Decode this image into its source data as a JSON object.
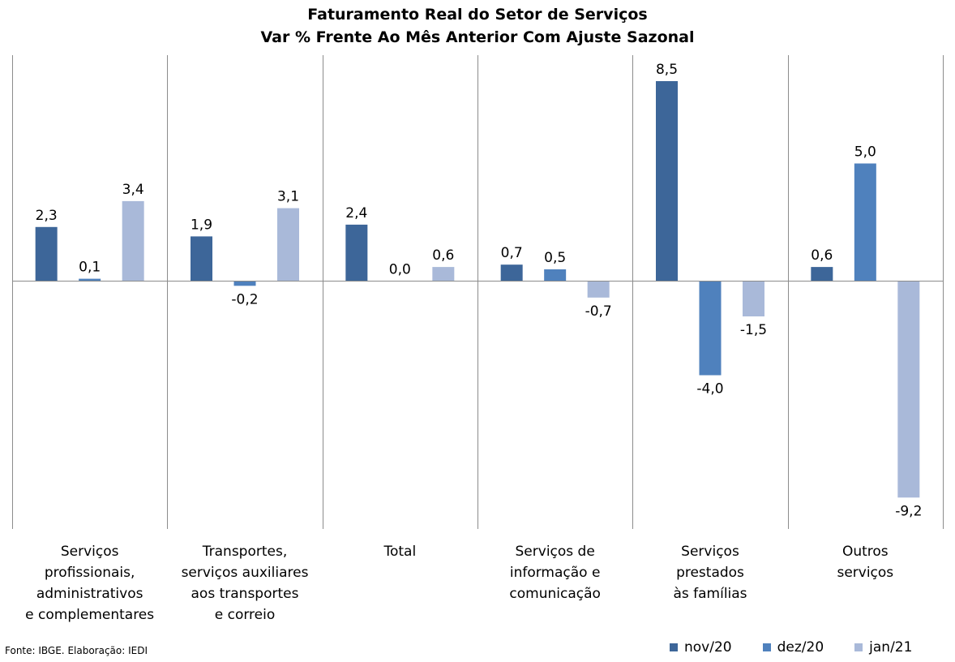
{
  "title_line1": "Faturamento Real do Setor de Serviços",
  "title_line2": "Var % Frente Ao Mês Anterior Com Ajuste Sazonal",
  "source": "Fonte: IBGE. Elaboração: IEDI",
  "colors": {
    "nov/20": "#3d6699",
    "dez/20": "#4f81bd",
    "jan/21": "#a9b9d9"
  },
  "chart_data": {
    "type": "bar",
    "title": "Faturamento Real do Setor de Serviços — Var % Frente Ao Mês Anterior Com Ajuste Sazonal",
    "categories": [
      [
        "Serviços",
        "profissionais,",
        "administrativos",
        "e complementares"
      ],
      [
        "Transportes,",
        "serviços auxiliares",
        "aos transportes",
        "e correio"
      ],
      [
        "Total"
      ],
      [
        "Serviços de",
        "informação e",
        "comunicação"
      ],
      [
        "Serviços",
        "prestados",
        "às famílias"
      ],
      [
        "Outros",
        "serviços"
      ]
    ],
    "series": [
      {
        "name": "nov/20",
        "values": [
          2.3,
          1.9,
          2.4,
          0.7,
          8.5,
          0.6
        ],
        "labels": [
          "2,3",
          "1,9",
          "2,4",
          "0,7",
          "8,5",
          "0,6"
        ]
      },
      {
        "name": "dez/20",
        "values": [
          0.1,
          -0.2,
          0.0,
          0.5,
          -4.0,
          5.0
        ],
        "labels": [
          "0,1",
          "-0,2",
          "0,0",
          "0,5",
          "-4,0",
          "5,0"
        ]
      },
      {
        "name": "jan/21",
        "values": [
          3.4,
          3.1,
          0.6,
          -0.7,
          -1.5,
          -9.2
        ],
        "labels": [
          "3,4",
          "3,1",
          "0,6",
          "-0,7",
          "-1,5",
          "-9,2"
        ]
      }
    ],
    "ylim": [
      -10.6,
      9.5
    ],
    "legend_position": "bottom-right",
    "grid": false
  }
}
